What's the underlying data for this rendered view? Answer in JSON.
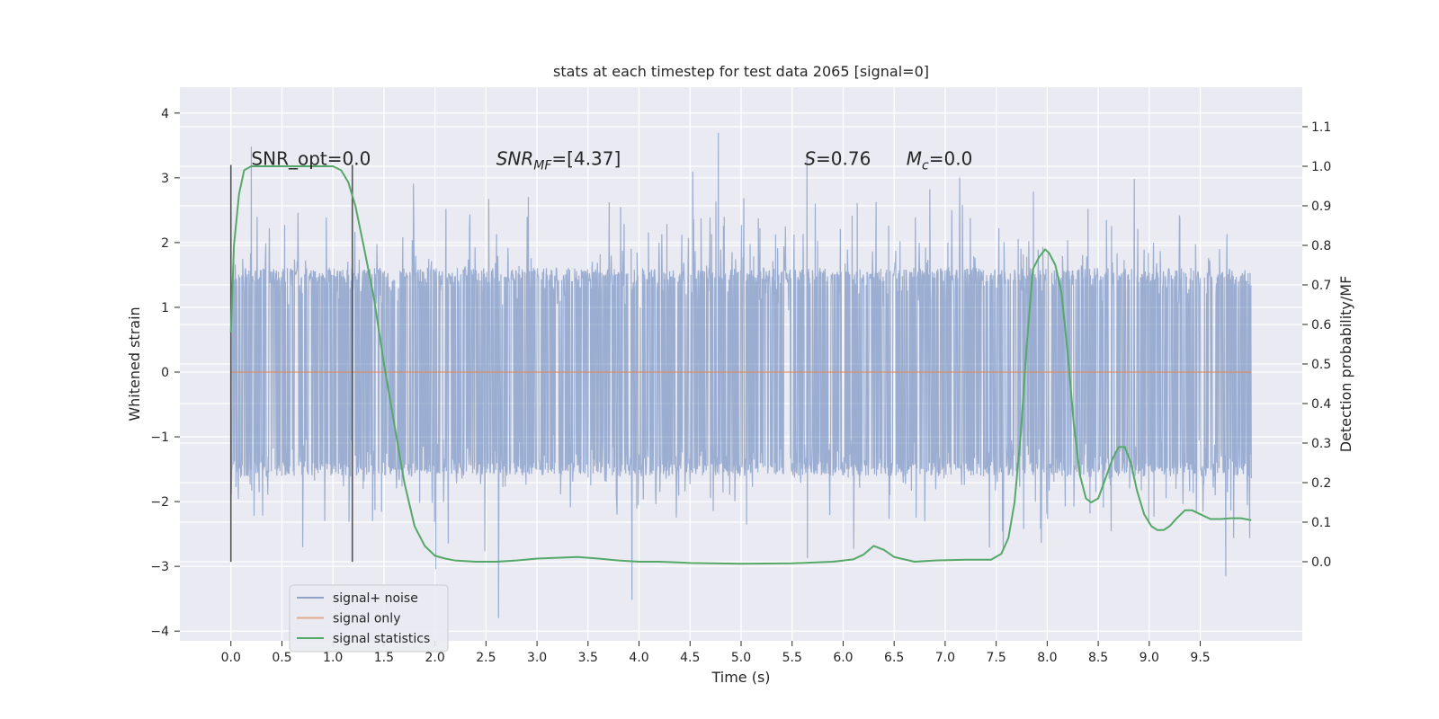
{
  "chart_data": {
    "type": "line",
    "title": "stats at each timestep for test data 2065 [signal=0]",
    "xlabel": "Time (s)",
    "ylabel": "Whitened strain",
    "y2label": "Detection probability/MF",
    "xlim": [
      -0.5,
      10.5
    ],
    "ylim": [
      -4.15,
      4.4
    ],
    "y2lim": [
      -0.2,
      1.2
    ],
    "x_ticks": [
      0.0,
      0.5,
      1.0,
      1.5,
      2.0,
      2.5,
      3.0,
      3.5,
      4.0,
      4.5,
      5.0,
      5.5,
      6.0,
      6.5,
      7.0,
      7.5,
      8.0,
      8.5,
      9.0,
      9.5
    ],
    "x_tick_labels": [
      "0.0",
      "0.5",
      "1.0",
      "1.5",
      "2.0",
      "2.5",
      "3.0",
      "3.5",
      "4.0",
      "4.5",
      "5.0",
      "5.5",
      "6.0",
      "6.5",
      "7.0",
      "7.5",
      "8.0",
      "8.5",
      "9.0",
      "9.5"
    ],
    "y_ticks": [
      -4,
      -3,
      -2,
      -1,
      0,
      1,
      2,
      3,
      4
    ],
    "y_tick_labels": [
      "−4",
      "−3",
      "−2",
      "−1",
      "0",
      "1",
      "2",
      "3",
      "4"
    ],
    "y2_ticks": [
      0.0,
      0.1,
      0.2,
      0.3,
      0.4,
      0.5,
      0.6,
      0.7,
      0.8,
      0.9,
      1.0,
      1.1
    ],
    "y2_tick_labels": [
      "0.0",
      "0.1",
      "0.2",
      "0.3",
      "0.4",
      "0.5",
      "0.6",
      "0.7",
      "0.8",
      "0.9",
      "1.0",
      "1.1"
    ],
    "grid": true,
    "legend_position": "lower-left",
    "series": [
      {
        "name": "signal+ noise",
        "axis": "left",
        "color": "#4c72b0",
        "note": "dense noise trace spanning 0.0 to 10.0 s, mostly within ±1.4, peaks to about ±3.8",
        "x_range": [
          0.0,
          10.0
        ],
        "typical_amplitude": 1.4,
        "peak_amplitude": 3.8
      },
      {
        "name": "signal only",
        "axis": "left",
        "color": "#dd8452",
        "x": [
          0.0,
          10.0
        ],
        "y": [
          0.0,
          0.0
        ]
      },
      {
        "name": "signal statistics",
        "axis": "right",
        "color": "#55a868",
        "x": [
          0.0,
          0.03,
          0.08,
          0.13,
          0.2,
          0.3,
          0.5,
          0.7,
          0.9,
          1.0,
          1.08,
          1.15,
          1.22,
          1.3,
          1.4,
          1.5,
          1.6,
          1.7,
          1.8,
          1.9,
          2.0,
          2.1,
          2.2,
          2.4,
          2.6,
          2.8,
          3.0,
          3.2,
          3.4,
          3.6,
          3.8,
          4.0,
          4.2,
          4.5,
          5.0,
          5.5,
          5.9,
          6.1,
          6.2,
          6.3,
          6.4,
          6.5,
          6.7,
          6.9,
          7.2,
          7.45,
          7.55,
          7.62,
          7.68,
          7.74,
          7.8,
          7.86,
          7.92,
          7.98,
          8.02,
          8.08,
          8.14,
          8.2,
          8.26,
          8.32,
          8.38,
          8.43,
          8.5,
          8.57,
          8.64,
          8.7,
          8.76,
          8.82,
          8.88,
          8.95,
          9.02,
          9.08,
          9.14,
          9.2,
          9.27,
          9.35,
          9.42,
          9.5,
          9.6,
          9.7,
          9.8,
          9.9,
          10.0
        ],
        "y": [
          0.58,
          0.8,
          0.93,
          0.99,
          1.0,
          1.0,
          1.0,
          1.0,
          1.0,
          1.0,
          0.99,
          0.96,
          0.9,
          0.8,
          0.67,
          0.5,
          0.35,
          0.2,
          0.09,
          0.04,
          0.015,
          0.008,
          0.003,
          0.0,
          0.0,
          0.003,
          0.008,
          0.01,
          0.012,
          0.008,
          0.003,
          0.0,
          0.0,
          -0.003,
          -0.005,
          -0.004,
          0.0,
          0.006,
          0.018,
          0.04,
          0.03,
          0.012,
          0.0,
          0.003,
          0.005,
          0.005,
          0.02,
          0.06,
          0.15,
          0.32,
          0.55,
          0.74,
          0.77,
          0.79,
          0.78,
          0.75,
          0.68,
          0.53,
          0.35,
          0.22,
          0.16,
          0.15,
          0.16,
          0.21,
          0.26,
          0.29,
          0.29,
          0.25,
          0.18,
          0.12,
          0.09,
          0.08,
          0.08,
          0.09,
          0.11,
          0.13,
          0.13,
          0.12,
          0.108,
          0.108,
          0.11,
          0.11,
          0.105
        ]
      }
    ],
    "vertical_lines": [
      {
        "x": 0.0,
        "y_range": [
          -2.93,
          3.2
        ],
        "color": "#555555"
      },
      {
        "x": 1.19,
        "y_range": [
          -2.93,
          3.2
        ],
        "color": "#555555"
      }
    ],
    "annotations": [
      {
        "id": "snr-opt",
        "text": "SNR_opt=0.0",
        "x": 0.2,
        "y": 3.2
      },
      {
        "id": "snr-mf",
        "prefix": "SNR",
        "sub": "MF",
        "suffix": "=[4.37]",
        "x": 2.6,
        "y": 3.2
      },
      {
        "id": "s-val",
        "prefix": "S",
        "sub": "",
        "suffix": "=0.76",
        "x": 5.62,
        "y": 3.2
      },
      {
        "id": "mc-val",
        "prefix": "M",
        "sub": "c",
        "suffix": "=0.0",
        "x": 6.62,
        "y": 3.2
      }
    ],
    "legend": [
      {
        "label": "signal+ noise",
        "color": "#8fa2c8"
      },
      {
        "label": "signal only",
        "color": "#e3a98a"
      },
      {
        "label": "signal statistics",
        "color": "#55a868"
      }
    ]
  }
}
